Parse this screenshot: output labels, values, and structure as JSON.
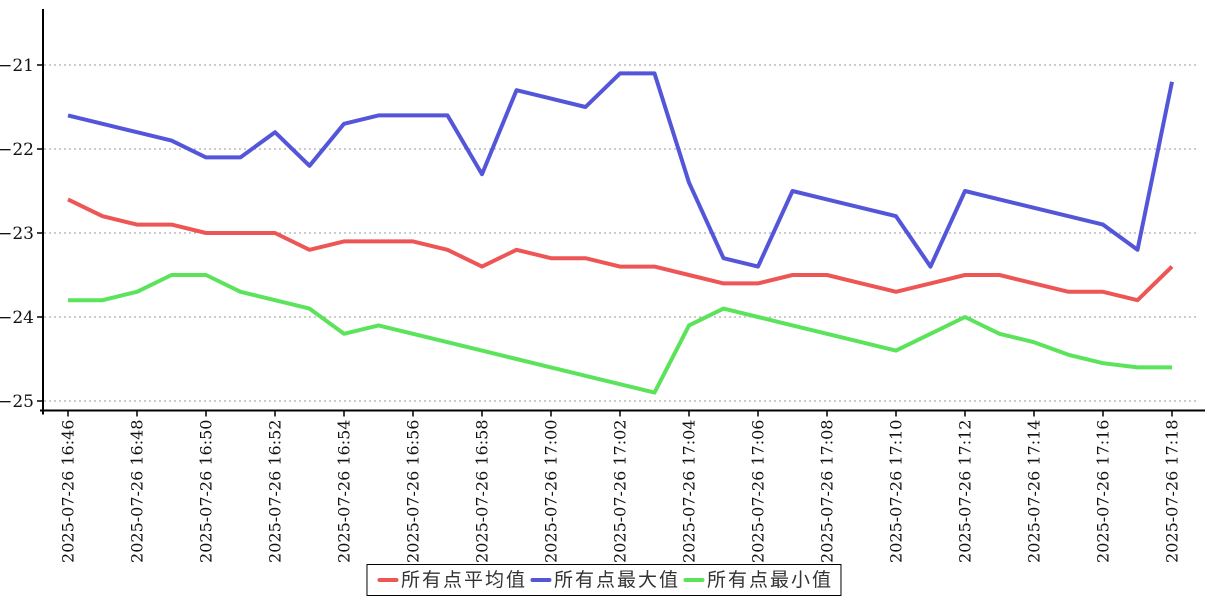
{
  "chart_data": {
    "type": "line",
    "title": "",
    "xlabel": "",
    "ylabel": "",
    "grid": "horizontal-dotted",
    "legend_position": "bottom-center",
    "ylim": [
      -25.1,
      -20.35
    ],
    "axis": {
      "y_ticks": [
        {
          "value": -21,
          "label": "−21"
        },
        {
          "value": -22,
          "label": "−22"
        },
        {
          "value": -23,
          "label": "−23"
        },
        {
          "value": -24,
          "label": "−24"
        },
        {
          "value": -25,
          "label": "−25"
        }
      ]
    },
    "x_tick_every": 2,
    "x": [
      "2025-07-26 16:46",
      "2025-07-26 16:47",
      "2025-07-26 16:48",
      "2025-07-26 16:49",
      "2025-07-26 16:50",
      "2025-07-26 16:51",
      "2025-07-26 16:52",
      "2025-07-26 16:53",
      "2025-07-26 16:54",
      "2025-07-26 16:55",
      "2025-07-26 16:56",
      "2025-07-26 16:57",
      "2025-07-26 16:58",
      "2025-07-26 16:59",
      "2025-07-26 17:00",
      "2025-07-26 17:01",
      "2025-07-26 17:02",
      "2025-07-26 17:03",
      "2025-07-26 17:04",
      "2025-07-26 17:05",
      "2025-07-26 17:06",
      "2025-07-26 17:07",
      "2025-07-26 17:08",
      "2025-07-26 17:09",
      "2025-07-26 17:10",
      "2025-07-26 17:11",
      "2025-07-26 17:12",
      "2025-07-26 17:13",
      "2025-07-26 17:14",
      "2025-07-26 17:15",
      "2025-07-26 17:16",
      "2025-07-26 17:17",
      "2025-07-26 17:18"
    ],
    "series": [
      {
        "id": "avg",
        "name": "所有点平均值",
        "color": "#ee5555",
        "values": [
          -22.6,
          -22.8,
          -22.9,
          -22.9,
          -23.0,
          -23.0,
          -23.0,
          -23.2,
          -23.1,
          -23.1,
          -23.1,
          -23.2,
          -23.4,
          -23.2,
          -23.3,
          -23.3,
          -23.4,
          -23.4,
          -23.5,
          -23.6,
          -23.6,
          -23.5,
          -23.5,
          -23.6,
          -23.7,
          -23.6,
          -23.5,
          -23.5,
          -23.6,
          -23.7,
          -23.7,
          -23.8,
          -23.4
        ]
      },
      {
        "id": "max",
        "name": "所有点最大值",
        "color": "#5456d9",
        "values": [
          -21.6,
          -21.7,
          -21.8,
          -21.9,
          -22.1,
          -22.1,
          -21.8,
          -22.2,
          -21.7,
          -21.6,
          -21.6,
          -21.6,
          -22.3,
          -21.3,
          -21.4,
          -21.5,
          -21.1,
          -21.1,
          -22.4,
          -23.3,
          -23.4,
          -22.5,
          -22.6,
          -22.7,
          -22.8,
          -23.4,
          -22.5,
          -22.6,
          -22.7,
          -22.8,
          -22.9,
          -23.2,
          -21.2
        ]
      },
      {
        "id": "min",
        "name": "所有点最小值",
        "color": "#5be35b",
        "values": [
          -23.8,
          -23.8,
          -23.7,
          -23.5,
          -23.5,
          -23.7,
          -23.8,
          -23.9,
          -24.2,
          -24.1,
          -24.2,
          -24.3,
          -24.4,
          -24.5,
          -24.6,
          -24.7,
          -24.8,
          -24.9,
          -24.1,
          -23.9,
          -24.0,
          -24.1,
          -24.2,
          -24.3,
          -24.4,
          -24.2,
          -24.0,
          -24.2,
          -24.3,
          -24.45,
          -24.55,
          -24.6,
          -24.6
        ]
      }
    ]
  }
}
